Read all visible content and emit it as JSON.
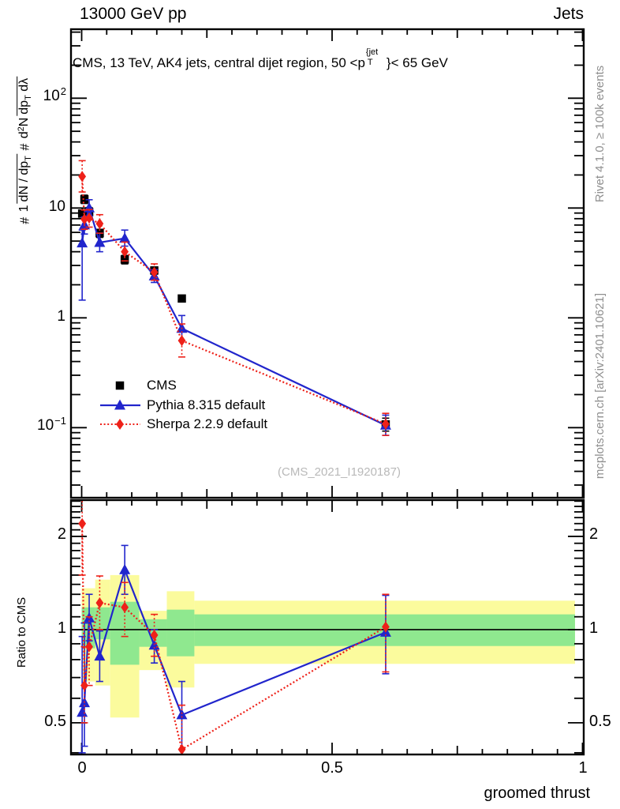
{
  "header": {
    "left": "13000 GeV pp",
    "right": "Jets"
  },
  "title": {
    "part1": "CMS, 13 TeV, AK4 jets, central dijet region, 50 <p",
    "sup": "{jet",
    "sub": "T",
    "part2": "}< 65 GeV"
  },
  "ylabel": {
    "hash1": "#",
    "f1_num": "1",
    "f1_den_main": "dN / dp",
    "f1_den_sub": "T",
    "hash2": "#",
    "f2_num_a": "d",
    "f2_num_sup": "2",
    "f2_num_b": "N",
    "f2_den_a": "dp",
    "f2_den_sub": "T",
    "f2_den_b": " dλ"
  },
  "ratio_label": "Ratio to CMS",
  "watermark": "(CMS_2021_I1920187)",
  "right_margin": {
    "top": "Rivet 4.1.0, ≥ 100k events",
    "bottom": "mcplots.cern.ch [arXiv:2401.10621]"
  },
  "legend": {
    "items": [
      {
        "label": "CMS",
        "marker": "square",
        "color": "#000000",
        "line": "none"
      },
      {
        "label": "Pythia 8.315 default",
        "marker": "triangle",
        "color": "#2125cc",
        "line": "solid"
      },
      {
        "label": "Sherpa 2.2.9 default",
        "marker": "diamond",
        "color": "#ee2119",
        "line": "dotted"
      }
    ]
  },
  "colors": {
    "pythia": "#2125cc",
    "sherpa": "#ee2119",
    "cms": "#000000",
    "band_outer": "#fbfb9d",
    "band_inner": "#8fe88f",
    "frame": "#000000"
  },
  "chart_data": {
    "type": "line",
    "xlabel": "groomed thrust",
    "xlim": [
      -0.0213,
      1.0024
    ],
    "xticks": [
      {
        "v": 0,
        "label": "0"
      },
      {
        "v": 0.5,
        "label": "0.5"
      },
      {
        "v": 1,
        "label": "1"
      }
    ],
    "x": [
      0.001,
      0.0055,
      0.015,
      0.036,
      0.086,
      0.145,
      0.2,
      0.607
    ],
    "main": {
      "ylim": [
        0.023,
        425
      ],
      "yticks": [
        {
          "v": 100,
          "base": "10",
          "exp": "2"
        },
        {
          "v": 10,
          "base": "10",
          "exp": ""
        },
        {
          "v": 1,
          "base": "1",
          "exp": ""
        },
        {
          "v": 0.1,
          "base": "10",
          "exp": "−1"
        }
      ],
      "series": [
        {
          "name": "CMS",
          "marker": "square",
          "color": "#000000",
          "line": "none",
          "values": [
            8.9,
            12.0,
            9.2,
            5.9,
            3.4,
            2.7,
            1.5,
            0.107
          ],
          "err_lo": [
            8.0,
            11.0,
            8.4,
            5.4,
            3.1,
            2.5,
            1.4,
            0.093
          ],
          "err_hi": [
            10.0,
            13.1,
            10.1,
            6.4,
            3.7,
            2.9,
            1.6,
            0.122
          ]
        },
        {
          "name": "Pythia 8.315 default",
          "marker": "triangle",
          "color": "#2125cc",
          "line": "solid",
          "values": [
            4.8,
            7.0,
            10.0,
            4.85,
            5.3,
            2.4,
            0.8,
            0.105
          ],
          "err_lo": [
            1.45,
            5.8,
            8.4,
            4.0,
            4.5,
            2.1,
            0.62,
            0.085
          ],
          "err_hi": [
            6.3,
            8.3,
            11.9,
            5.9,
            6.3,
            2.75,
            1.05,
            0.13
          ]
        },
        {
          "name": "Sherpa 2.2.9 default",
          "marker": "diamond",
          "color": "#ee2119",
          "line": "dotted",
          "values": [
            19.4,
            7.9,
            8.1,
            7.2,
            4.0,
            2.6,
            0.62,
            0.108
          ],
          "err_lo": [
            14.0,
            6.4,
            6.7,
            5.9,
            3.3,
            2.2,
            0.44,
            0.085
          ],
          "err_hi": [
            27.0,
            9.6,
            9.7,
            8.7,
            4.9,
            3.1,
            0.88,
            0.135
          ]
        }
      ]
    },
    "ratio": {
      "ylim": [
        0.395,
        2.62
      ],
      "yticks": [
        {
          "v": 2,
          "label": "2"
        },
        {
          "v": 1,
          "label": "1"
        },
        {
          "v": 0.5,
          "label": "0.5"
        }
      ],
      "series": [
        {
          "name": "Pythia 8.315 default",
          "marker": "triangle",
          "color": "#2125cc",
          "line": "solid",
          "values": [
            0.54,
            0.58,
            1.09,
            0.82,
            1.56,
            0.89,
            0.53,
            0.98
          ],
          "err_lo": [
            0.4,
            0.42,
            0.92,
            0.68,
            1.3,
            0.78,
            0.41,
            0.72
          ],
          "err_hi": [
            0.95,
            1.05,
            1.3,
            0.99,
            1.87,
            1.0,
            0.68,
            1.29
          ]
        },
        {
          "name": "Sherpa 2.2.9 default",
          "marker": "diamond",
          "color": "#ee2119",
          "line": "dotted",
          "values": [
            2.2,
            0.66,
            0.88,
            1.22,
            1.18,
            0.96,
            0.41,
            1.02
          ],
          "err_lo": [
            1.5,
            0.5,
            0.66,
            1.0,
            0.95,
            0.82,
            0.29,
            0.73
          ],
          "err_hi": [
            2.75,
            0.88,
            1.1,
            1.49,
            1.42,
            1.12,
            0.57,
            1.3
          ]
        }
      ],
      "bands": [
        {
          "x0": 0.0,
          "x1": 0.027,
          "outer": [
            0.68,
            1.36
          ],
          "inner": [
            0.87,
            1.18
          ]
        },
        {
          "x0": 0.027,
          "x1": 0.057,
          "outer": [
            0.66,
            1.45
          ],
          "inner": [
            0.93,
            1.18
          ]
        },
        {
          "x0": 0.057,
          "x1": 0.115,
          "outer": [
            0.52,
            1.5
          ],
          "inner": [
            0.77,
            1.23
          ]
        },
        {
          "x0": 0.115,
          "x1": 0.17,
          "outer": [
            0.74,
            1.15
          ],
          "inner": [
            0.88,
            1.08
          ]
        },
        {
          "x0": 0.17,
          "x1": 0.225,
          "outer": [
            0.65,
            1.33
          ],
          "inner": [
            0.82,
            1.16
          ]
        },
        {
          "x0": 0.225,
          "x1": 0.985,
          "outer": [
            0.775,
            1.24
          ],
          "inner": [
            0.885,
            1.12
          ]
        }
      ]
    }
  }
}
